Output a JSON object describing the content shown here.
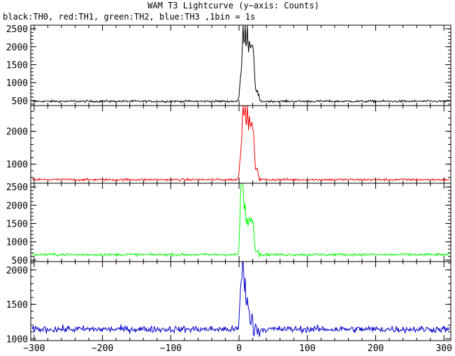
{
  "title": "WAM T3 Lightcurve (y−axis: Counts)",
  "subtitle": "black:TH0, red:TH1, green:TH2, blue:TH3 ,1bin = 1s",
  "chart_data": [
    {
      "type": "line",
      "series": [
        {
          "name": "TH0",
          "color": "#000000",
          "baseline": 480,
          "noise": 22,
          "peaks": [
            [
              3,
              1.8,
              800
            ],
            [
              6,
              1.2,
              1900
            ],
            [
              9,
              1.0,
              2050
            ],
            [
              12,
              1.0,
              2100
            ],
            [
              15,
              1.2,
              1500
            ],
            [
              18,
              1.5,
              1350
            ],
            [
              21,
              1.5,
              1200
            ],
            [
              26,
              2.0,
              300
            ]
          ]
        }
      ],
      "x_range": [
        -305,
        310
      ],
      "ylim": [
        360,
        2600
      ],
      "y_ticks": [
        500,
        1000,
        1500,
        2000,
        2500
      ],
      "x_ticks": [
        -300,
        -200,
        -100,
        0,
        100,
        200,
        300
      ],
      "grid": false
    },
    {
      "type": "line",
      "series": [
        {
          "name": "TH1",
          "color": "#ff0000",
          "baseline": 530,
          "noise": 24,
          "peaks": [
            [
              3,
              1.8,
              900
            ],
            [
              6,
              1.2,
              2200
            ],
            [
              9,
              1.0,
              2400
            ],
            [
              12,
              1.0,
              2300
            ],
            [
              15,
              1.2,
              1650
            ],
            [
              18,
              1.5,
              1450
            ],
            [
              21,
              1.5,
              1250
            ],
            [
              26,
              2.0,
              300
            ]
          ]
        }
      ],
      "x_range": [
        -305,
        310
      ],
      "ylim": [
        420,
        2780
      ],
      "y_ticks": [
        1000,
        2000
      ],
      "x_ticks": [
        -300,
        -200,
        -100,
        0,
        100,
        200,
        300
      ],
      "grid": false
    },
    {
      "type": "line",
      "series": [
        {
          "name": "TH2",
          "color": "#00ff00",
          "baseline": 650,
          "noise": 26,
          "peaks": [
            [
              3,
              1.5,
              2000
            ],
            [
              6,
              1.2,
              1600
            ],
            [
              9,
              1.0,
              1300
            ],
            [
              12,
              1.0,
              1000
            ],
            [
              15,
              1.2,
              900
            ],
            [
              18,
              1.5,
              850
            ],
            [
              21,
              1.5,
              700
            ],
            [
              26,
              2.0,
              150
            ]
          ]
        }
      ],
      "x_range": [
        -305,
        310
      ],
      "ylim": [
        460,
        2600
      ],
      "y_ticks": [
        500,
        1000,
        1500,
        2000,
        2500
      ],
      "x_ticks": [
        -300,
        -200,
        -100,
        0,
        100,
        200,
        300
      ],
      "grid": false
    },
    {
      "type": "line",
      "series": [
        {
          "name": "TH3",
          "color": "#0000cc",
          "baseline": 1140,
          "noise": 35,
          "peaks": [
            [
              3,
              1.5,
              700
            ],
            [
              6,
              1.2,
              900
            ],
            [
              9,
              1.0,
              650
            ],
            [
              12,
              1.0,
              450
            ],
            [
              15,
              1.2,
              200
            ],
            [
              19,
              1.5,
              120
            ]
          ]
        }
      ],
      "x_range": [
        -305,
        310
      ],
      "ylim": [
        975,
        2120
      ],
      "y_ticks": [
        1000,
        1500,
        2000
      ],
      "x_ticks": [
        -300,
        -200,
        -100,
        0,
        100,
        200,
        300
      ],
      "x_tick_labels": [
        "−300",
        "−200",
        "−100",
        "0",
        "100",
        "200",
        "300"
      ],
      "grid": false
    }
  ]
}
